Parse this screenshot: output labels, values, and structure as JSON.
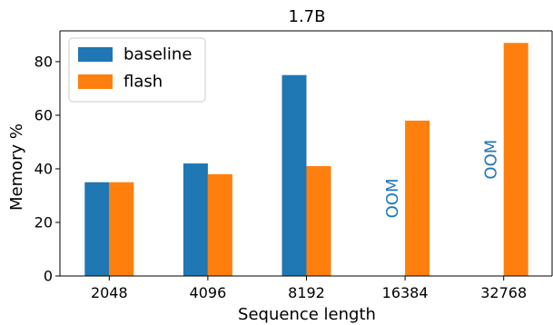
{
  "chart_data": {
    "type": "bar",
    "title": "1.7B",
    "xlabel": "Sequence length",
    "ylabel": "Memory %",
    "categories": [
      "2048",
      "4096",
      "8192",
      "16384",
      "32768"
    ],
    "series": [
      {
        "name": "baseline",
        "color": "#1f77b4",
        "values": [
          35,
          42,
          75,
          null,
          null
        ]
      },
      {
        "name": "flash",
        "color": "#ff7f0e",
        "values": [
          35,
          38,
          41,
          58,
          87
        ]
      }
    ],
    "ylim": [
      0,
      91.5
    ],
    "yticks": [
      0,
      20,
      40,
      60,
      80
    ],
    "annotations": [
      {
        "text": "OOM",
        "category": "16384",
        "series": "baseline",
        "color": "#1f77b4"
      },
      {
        "text": "OOM",
        "category": "32768",
        "series": "baseline",
        "color": "#1f77b4"
      }
    ],
    "legend": "top-left",
    "grid": false
  }
}
